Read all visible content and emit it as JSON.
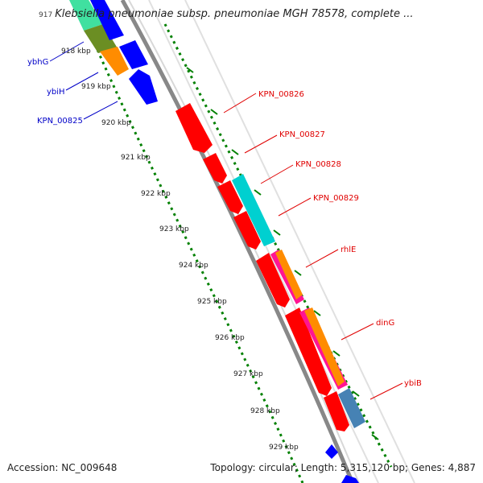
{
  "header": {
    "position_prefix": "917",
    "title": "Klebsiella pneumoniae subsp. pneumoniae MGH 78578, complete ..."
  },
  "axis": {
    "unit": "kbp",
    "ticks": [
      "918 kbp",
      "919 kbp",
      "920 kbp",
      "921 kbp",
      "922 kbp",
      "923 kbp",
      "924 kbp",
      "925 kbp",
      "926 kbp",
      "927 kbp",
      "928 kbp",
      "929 kbp"
    ]
  },
  "gene_labels": {
    "left": [
      "ybhG",
      "ybiH",
      "KPN_00825"
    ],
    "right": [
      "KPN_00826",
      "KPN_00827",
      "KPN_00828",
      "KPN_00829",
      "rhlE",
      "dinG",
      "ybiB"
    ]
  },
  "footer": {
    "accession": "Accession: NC_009648",
    "summary": "Topology: circular; Length: 5,315,120 bp; Genes: 4,887"
  },
  "colors": {
    "forward_gene": "#ff0000",
    "reverse_gene": "#0000ff",
    "gc_skew_dots": "#008000",
    "backbone": "#888888",
    "label_red": "#e00000",
    "label_blue": "#0000c8"
  }
}
